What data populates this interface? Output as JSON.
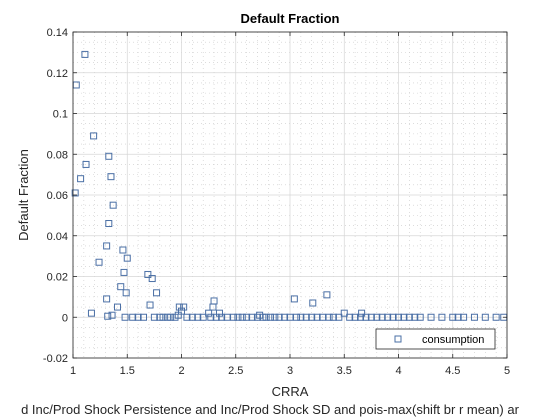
{
  "chart_data": {
    "type": "scatter",
    "title": "Default Fraction",
    "xlabel": "CRRA",
    "ylabel": "Default Fraction",
    "footnote": "d Inc/Prod Shock Persistence and Inc/Prod Shock SD and pois-max(shift br r mean) ar",
    "xlim": [
      1,
      5
    ],
    "ylim": [
      -0.02,
      0.14
    ],
    "x_ticks": [
      "1",
      "1.5",
      "2",
      "2.5",
      "3",
      "3.5",
      "4",
      "4.5",
      "5"
    ],
    "y_ticks": [
      "-0.02",
      "0",
      "0.02",
      "0.04",
      "0.06",
      "0.08",
      "0.1",
      "0.12",
      "0.14"
    ],
    "grid": true,
    "minor_grid": true,
    "legend_position": "bottom-right",
    "marker_color": "#4a6fa5",
    "series": [
      {
        "name": "consumption",
        "points": [
          [
            1.02,
            0.061
          ],
          [
            1.03,
            0.114
          ],
          [
            1.07,
            0.068
          ],
          [
            1.11,
            0.129
          ],
          [
            1.12,
            0.075
          ],
          [
            1.17,
            0.002
          ],
          [
            1.19,
            0.089
          ],
          [
            1.24,
            0.027
          ],
          [
            1.31,
            0.035
          ],
          [
            1.31,
            0.009
          ],
          [
            1.32,
            0.0005
          ],
          [
            1.33,
            0.079
          ],
          [
            1.33,
            0.046
          ],
          [
            1.35,
            0.069
          ],
          [
            1.36,
            0.001
          ],
          [
            1.37,
            0.055
          ],
          [
            1.41,
            0.005
          ],
          [
            1.44,
            0.015
          ],
          [
            1.46,
            0.033
          ],
          [
            1.47,
            0.022
          ],
          [
            1.48,
            0.0
          ],
          [
            1.49,
            0.012
          ],
          [
            1.5,
            0.029
          ],
          [
            1.55,
            0.0
          ],
          [
            1.6,
            0.0
          ],
          [
            1.65,
            0.0
          ],
          [
            1.69,
            0.021
          ],
          [
            1.71,
            0.006
          ],
          [
            1.73,
            0.019
          ],
          [
            1.75,
            0.0
          ],
          [
            1.77,
            0.012
          ],
          [
            1.8,
            0.0
          ],
          [
            1.83,
            0.0
          ],
          [
            1.87,
            0.0
          ],
          [
            1.9,
            0.0
          ],
          [
            1.94,
            0.0
          ],
          [
            1.97,
            0.001
          ],
          [
            1.98,
            0.005
          ],
          [
            2.0,
            0.003
          ],
          [
            2.02,
            0.005
          ],
          [
            2.05,
            0.0
          ],
          [
            2.1,
            0.0
          ],
          [
            2.15,
            0.0
          ],
          [
            2.2,
            0.0
          ],
          [
            2.25,
            0.002
          ],
          [
            2.27,
            0.0
          ],
          [
            2.29,
            0.005
          ],
          [
            2.3,
            0.008
          ],
          [
            2.32,
            0.0
          ],
          [
            2.35,
            0.002
          ],
          [
            2.37,
            0.0
          ],
          [
            2.42,
            0.0
          ],
          [
            2.48,
            0.0
          ],
          [
            2.52,
            0.0
          ],
          [
            2.56,
            0.0
          ],
          [
            2.6,
            0.0
          ],
          [
            2.65,
            0.0
          ],
          [
            2.7,
            0.0
          ],
          [
            2.72,
            0.001
          ],
          [
            2.75,
            0.0
          ],
          [
            2.78,
            0.0
          ],
          [
            2.82,
            0.0
          ],
          [
            2.86,
            0.0
          ],
          [
            2.9,
            0.0
          ],
          [
            2.95,
            0.0
          ],
          [
            3.0,
            0.0
          ],
          [
            3.04,
            0.009
          ],
          [
            3.06,
            0.0
          ],
          [
            3.1,
            0.0
          ],
          [
            3.15,
            0.0
          ],
          [
            3.2,
            0.0
          ],
          [
            3.21,
            0.007
          ],
          [
            3.25,
            0.0
          ],
          [
            3.3,
            0.0
          ],
          [
            3.34,
            0.011
          ],
          [
            3.36,
            0.0
          ],
          [
            3.4,
            0.0
          ],
          [
            3.45,
            0.0
          ],
          [
            3.5,
            0.002
          ],
          [
            3.55,
            0.0
          ],
          [
            3.6,
            0.0
          ],
          [
            3.65,
            0.0
          ],
          [
            3.66,
            0.002
          ],
          [
            3.7,
            0.0
          ],
          [
            3.75,
            0.0
          ],
          [
            3.8,
            0.0
          ],
          [
            3.85,
            0.0
          ],
          [
            3.9,
            0.0
          ],
          [
            3.95,
            0.0
          ],
          [
            4.0,
            0.0
          ],
          [
            4.05,
            0.0
          ],
          [
            4.1,
            0.0
          ],
          [
            4.15,
            0.0
          ],
          [
            4.2,
            0.0
          ],
          [
            4.3,
            0.0
          ],
          [
            4.4,
            0.0
          ],
          [
            4.5,
            0.0
          ],
          [
            4.55,
            0.0
          ],
          [
            4.6,
            0.0
          ],
          [
            4.7,
            0.0
          ],
          [
            4.8,
            0.0
          ],
          [
            4.9,
            0.0
          ],
          [
            4.97,
            0.0
          ]
        ]
      }
    ]
  }
}
